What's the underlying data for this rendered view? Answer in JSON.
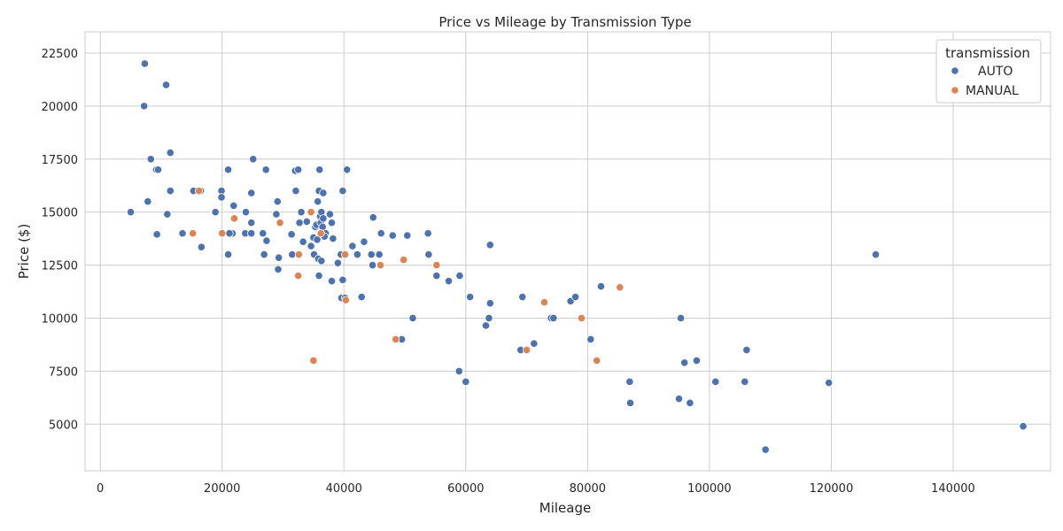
{
  "chart_data": {
    "type": "scatter",
    "title": "Price vs Mileage by Transmission Type",
    "xlabel": "Mileage",
    "ylabel": "Price ($)",
    "xlim": [
      -2500,
      156000
    ],
    "ylim": [
      2800,
      23500
    ],
    "xticks": [
      0,
      20000,
      40000,
      60000,
      80000,
      100000,
      120000,
      140000
    ],
    "yticks": [
      5000,
      7500,
      10000,
      12500,
      15000,
      17500,
      20000,
      22500
    ],
    "grid": true,
    "legend": {
      "title": "transmission",
      "placement": "top-right"
    },
    "series": [
      {
        "name": "AUTO",
        "color": "#4c72b0",
        "points": [
          [
            7300,
            22000
          ],
          [
            10800,
            21000
          ],
          [
            7200,
            20000
          ],
          [
            11500,
            17800
          ],
          [
            8300,
            17500
          ],
          [
            9200,
            17000
          ],
          [
            9500,
            17000
          ],
          [
            5000,
            15000
          ],
          [
            7800,
            15500
          ],
          [
            11500,
            16000
          ],
          [
            15300,
            16000
          ],
          [
            16500,
            16000
          ],
          [
            11000,
            14900
          ],
          [
            9300,
            13950
          ],
          [
            13500,
            14000
          ],
          [
            16600,
            13350
          ],
          [
            18900,
            15000
          ],
          [
            19900,
            16000
          ],
          [
            19900,
            15700
          ],
          [
            21000,
            17000
          ],
          [
            21700,
            14000
          ],
          [
            21200,
            14000
          ],
          [
            21900,
            15300
          ],
          [
            21000,
            13000
          ],
          [
            23900,
            15000
          ],
          [
            23800,
            14000
          ],
          [
            24800,
            14500
          ],
          [
            24800,
            15900
          ],
          [
            25100,
            17500
          ],
          [
            24800,
            14000
          ],
          [
            26700,
            14000
          ],
          [
            27200,
            17000
          ],
          [
            27300,
            13650
          ],
          [
            26900,
            13000
          ],
          [
            28900,
            14900
          ],
          [
            29100,
            15500
          ],
          [
            29200,
            12300
          ],
          [
            29300,
            12850
          ],
          [
            31400,
            13950
          ],
          [
            32100,
            16000
          ],
          [
            32000,
            16950
          ],
          [
            32500,
            17000
          ],
          [
            32700,
            14500
          ],
          [
            33000,
            15000
          ],
          [
            33300,
            13600
          ],
          [
            31500,
            13000
          ],
          [
            33900,
            14550
          ],
          [
            34600,
            13400
          ],
          [
            35000,
            13800
          ],
          [
            35100,
            13000
          ],
          [
            35300,
            14300
          ],
          [
            35500,
            14400
          ],
          [
            35700,
            15500
          ],
          [
            35900,
            16000
          ],
          [
            36000,
            17000
          ],
          [
            36100,
            14800
          ],
          [
            36200,
            14500
          ],
          [
            36300,
            15000
          ],
          [
            36500,
            14300
          ],
          [
            36600,
            15900
          ],
          [
            36600,
            14700
          ],
          [
            37000,
            14000
          ],
          [
            36800,
            13850
          ],
          [
            35600,
            13700
          ],
          [
            35800,
            12800
          ],
          [
            36300,
            12700
          ],
          [
            35900,
            12000
          ],
          [
            37700,
            14900
          ],
          [
            38000,
            14500
          ],
          [
            38200,
            13750
          ],
          [
            38000,
            11750
          ],
          [
            39000,
            12600
          ],
          [
            39500,
            13000
          ],
          [
            39800,
            11800
          ],
          [
            39600,
            10950
          ],
          [
            39800,
            16000
          ],
          [
            40500,
            17000
          ],
          [
            40200,
            10950
          ],
          [
            41400,
            13400
          ],
          [
            42200,
            13000
          ],
          [
            43300,
            13600
          ],
          [
            42900,
            11000
          ],
          [
            44500,
            13000
          ],
          [
            44700,
            12500
          ],
          [
            44800,
            14750
          ],
          [
            45800,
            13000
          ],
          [
            46100,
            14000
          ],
          [
            48000,
            13900
          ],
          [
            49500,
            9000
          ],
          [
            50400,
            13900
          ],
          [
            51300,
            10000
          ],
          [
            53800,
            14000
          ],
          [
            53900,
            13000
          ],
          [
            55200,
            12000
          ],
          [
            57200,
            11750
          ],
          [
            59000,
            12000
          ],
          [
            58900,
            7500
          ],
          [
            60000,
            7000
          ],
          [
            60700,
            11000
          ],
          [
            63300,
            9650
          ],
          [
            63800,
            10000
          ],
          [
            64000,
            13450
          ],
          [
            64000,
            10700
          ],
          [
            69000,
            8500
          ],
          [
            69300,
            11000
          ],
          [
            71200,
            8800
          ],
          [
            74000,
            10000
          ],
          [
            74400,
            10000
          ],
          [
            77200,
            10800
          ],
          [
            78000,
            11000
          ],
          [
            80500,
            9000
          ],
          [
            82200,
            11500
          ],
          [
            86900,
            7000
          ],
          [
            87000,
            6000
          ],
          [
            95000,
            6200
          ],
          [
            95300,
            10000
          ],
          [
            95900,
            7900
          ],
          [
            96800,
            6000
          ],
          [
            97900,
            8000
          ],
          [
            101000,
            7000
          ],
          [
            105800,
            7000
          ],
          [
            106100,
            8500
          ],
          [
            119600,
            6950
          ],
          [
            127300,
            13000
          ],
          [
            109200,
            3800
          ],
          [
            151500,
            4900
          ]
        ]
      },
      {
        "name": "MANUAL",
        "color": "#dd8452",
        "points": [
          [
            15200,
            14000
          ],
          [
            16200,
            16000
          ],
          [
            20000,
            14000
          ],
          [
            22000,
            14700
          ],
          [
            29500,
            14500
          ],
          [
            32500,
            12000
          ],
          [
            32600,
            13000
          ],
          [
            34600,
            15000
          ],
          [
            35000,
            8000
          ],
          [
            36200,
            14000
          ],
          [
            40200,
            13000
          ],
          [
            40300,
            10850
          ],
          [
            46000,
            12500
          ],
          [
            48500,
            9000
          ],
          [
            49800,
            12750
          ],
          [
            55200,
            12500
          ],
          [
            70000,
            8500
          ],
          [
            72900,
            10750
          ],
          [
            79000,
            10000
          ],
          [
            81500,
            8000
          ],
          [
            85300,
            11450
          ]
        ]
      }
    ]
  }
}
